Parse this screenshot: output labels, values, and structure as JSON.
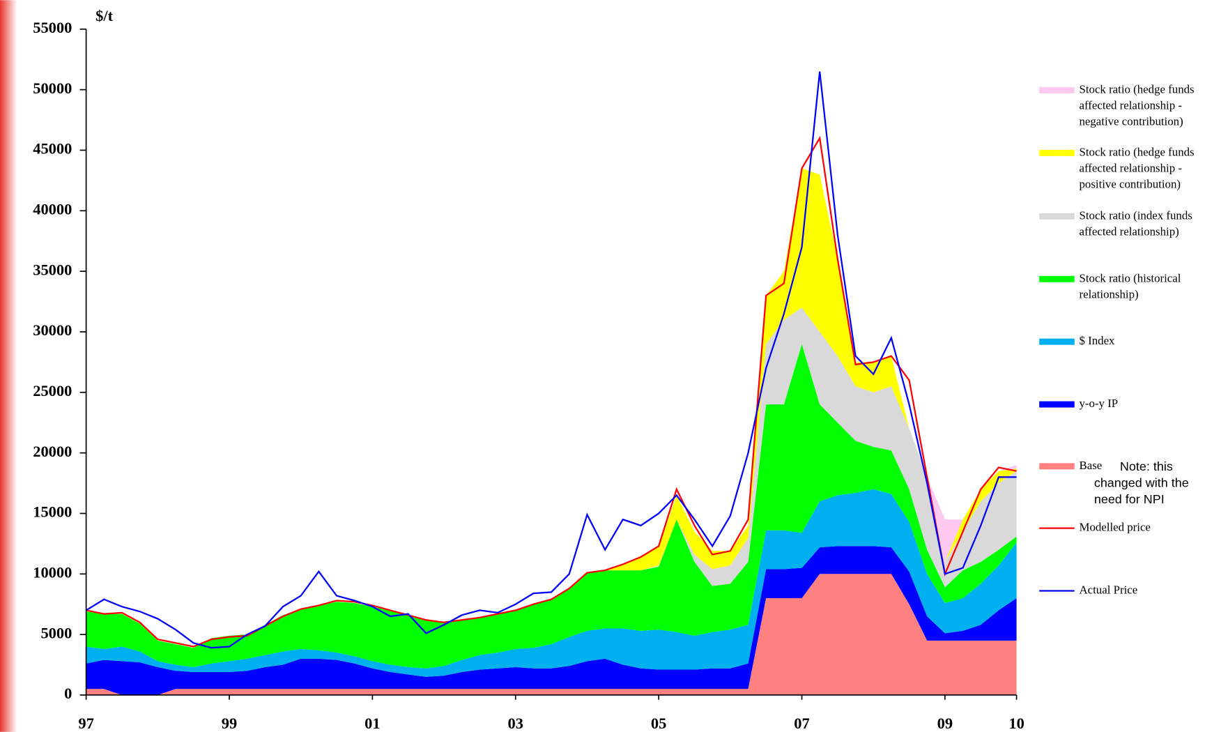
{
  "chart_data": {
    "type": "area",
    "y_label": "$/t",
    "annotation": "Note: this changed with the need for NPI",
    "x": [
      1997.0,
      1997.25,
      1997.5,
      1997.75,
      1998.0,
      1998.25,
      1998.5,
      1998.75,
      1999.0,
      1999.25,
      1999.5,
      1999.75,
      2000.0,
      2000.25,
      2000.5,
      2000.75,
      2001.0,
      2001.25,
      2001.5,
      2001.75,
      2002.0,
      2002.25,
      2002.5,
      2002.75,
      2003.0,
      2003.25,
      2003.5,
      2003.75,
      2004.0,
      2004.25,
      2004.5,
      2004.75,
      2005.0,
      2005.25,
      2005.5,
      2005.75,
      2006.0,
      2006.25,
      2006.5,
      2006.75,
      2007.0,
      2007.25,
      2007.5,
      2007.75,
      2008.0,
      2008.25,
      2008.5,
      2008.75,
      2009.0,
      2009.25,
      2009.5,
      2009.75,
      2010.0
    ],
    "xlim": [
      1997,
      2010
    ],
    "xticks": [
      {
        "value": 1997,
        "label": "97"
      },
      {
        "value": 1999,
        "label": "99"
      },
      {
        "value": 2001,
        "label": "01"
      },
      {
        "value": 2003,
        "label": "03"
      },
      {
        "value": 2005,
        "label": "05"
      },
      {
        "value": 2007,
        "label": "07"
      },
      {
        "value": 2009,
        "label": "09"
      },
      {
        "value": 2010,
        "label": "10"
      }
    ],
    "ylim": [
      0,
      55000
    ],
    "yticks": [
      0,
      5000,
      10000,
      15000,
      20000,
      25000,
      30000,
      35000,
      40000,
      45000,
      50000,
      55000
    ],
    "series": [
      {
        "name": "Base",
        "color": "#ff8080",
        "type": "area",
        "values": [
          500,
          500,
          0,
          0,
          0,
          500,
          500,
          500,
          500,
          500,
          500,
          500,
          500,
          500,
          500,
          500,
          500,
          500,
          500,
          500,
          500,
          500,
          500,
          500,
          500,
          500,
          500,
          500,
          500,
          500,
          500,
          500,
          500,
          500,
          500,
          500,
          500,
          500,
          8000,
          8000,
          8000,
          10000,
          10000,
          10000,
          10000,
          10000,
          7500,
          4500,
          4500,
          4500,
          4500,
          4500,
          4500
        ]
      },
      {
        "name": "y-o-y IP",
        "color": "#0000ff",
        "type": "area",
        "values": [
          2100,
          2400,
          2800,
          2700,
          2300,
          1500,
          1400,
          1400,
          1400,
          1500,
          1800,
          2000,
          2500,
          2500,
          2400,
          2100,
          1700,
          1400,
          1200,
          1000,
          1100,
          1400,
          1600,
          1700,
          1800,
          1700,
          1700,
          1900,
          2300,
          2500,
          2000,
          1700,
          1600,
          1600,
          1600,
          1700,
          1700,
          2100,
          2400,
          2400,
          2500,
          2200,
          2300,
          2300,
          2300,
          2200,
          2700,
          2000,
          600,
          800,
          1300,
          2500,
          3500
        ]
      },
      {
        "name": "$ Index",
        "color": "#00b0f0",
        "type": "area",
        "values": [
          1400,
          900,
          1200,
          900,
          500,
          500,
          400,
          700,
          900,
          1000,
          1000,
          1100,
          800,
          700,
          600,
          600,
          600,
          600,
          600,
          700,
          800,
          1000,
          1200,
          1300,
          1500,
          1700,
          2000,
          2400,
          2500,
          2500,
          3000,
          3100,
          3300,
          3100,
          2800,
          3000,
          3200,
          3200,
          3200,
          3200,
          2900,
          3800,
          4200,
          4400,
          4700,
          4400,
          4100,
          3500,
          2500,
          2700,
          3400,
          3700,
          4600
        ]
      },
      {
        "name": "Stock ratio (historical relationship)",
        "color": "#00ff00",
        "type": "area",
        "values": [
          2900,
          2900,
          2700,
          2300,
          1700,
          1700,
          1600,
          2100,
          2100,
          2000,
          2500,
          3000,
          3300,
          3700,
          4200,
          4400,
          4500,
          4500,
          4300,
          4000,
          3600,
          3300,
          3100,
          3200,
          3200,
          3600,
          3700,
          4000,
          4800,
          4800,
          4800,
          5000,
          5200,
          9300,
          6100,
          3800,
          3800,
          5200,
          10400,
          10400,
          15600,
          8000,
          6000,
          4300,
          3500,
          3600,
          2700,
          2000,
          1300,
          2300,
          1800,
          1300,
          500
        ]
      },
      {
        "name": "Stock ratio (index funds affected relationship)",
        "color": "#d9d9d9",
        "type": "area",
        "values": [
          0,
          0,
          0,
          0,
          0,
          0,
          0,
          0,
          0,
          0,
          0,
          0,
          0,
          0,
          0,
          0,
          0,
          0,
          0,
          0,
          0,
          0,
          0,
          0,
          0,
          0,
          0,
          0,
          0,
          0,
          0,
          0,
          100,
          0,
          600,
          1400,
          1500,
          2000,
          5000,
          7000,
          3000,
          6000,
          5500,
          4500,
          4500,
          5300,
          5000,
          6000,
          2100,
          3200,
          5000,
          5500,
          5400
        ]
      },
      {
        "name": "Stock ratio (hedge funds affected relationship - positive contribution)",
        "color": "#ffff00",
        "type": "area",
        "values": [
          0,
          0,
          0,
          0,
          0,
          0,
          0,
          0,
          0,
          0,
          0,
          0,
          0,
          0,
          0,
          0,
          0,
          0,
          0,
          0,
          0,
          0,
          0,
          0,
          0,
          0,
          0,
          0,
          0,
          0,
          500,
          1200,
          1500,
          2000,
          1900,
          1500,
          1200,
          1000,
          4000,
          4000,
          11500,
          13000,
          8000,
          2000,
          2500,
          2500,
          0,
          0,
          0,
          1000,
          1000,
          1000,
          200
        ]
      },
      {
        "name": "Stock ratio (hedge funds affected relationship - negative contribution)",
        "color": "#ffc8f0",
        "type": "area",
        "values": [
          0,
          0,
          0,
          0,
          0,
          0,
          0,
          0,
          0,
          0,
          0,
          0,
          0,
          0,
          0,
          0,
          0,
          0,
          0,
          0,
          0,
          0,
          0,
          0,
          0,
          0,
          0,
          0,
          0,
          0,
          0,
          0,
          0,
          0,
          0,
          0,
          0,
          0,
          0,
          0,
          0,
          0,
          0,
          0,
          0,
          0,
          0,
          0,
          3500,
          0,
          0,
          0,
          300
        ]
      },
      {
        "name": "Modelled price",
        "color": "#ff0000",
        "type": "line",
        "values": [
          7000,
          6700,
          6800,
          6000,
          4600,
          4300,
          4000,
          4600,
          4800,
          4900,
          5700,
          6500,
          7100,
          7400,
          7800,
          7700,
          7400,
          7000,
          6600,
          6200,
          6000,
          6200,
          6400,
          6700,
          7000,
          7500,
          7900,
          8800,
          10100,
          10300,
          10800,
          11400,
          12300,
          17000,
          14000,
          11600,
          11900,
          14500,
          33000,
          34000,
          43500,
          46000,
          36000,
          27300,
          27500,
          28000,
          26000,
          18000,
          10000,
          13500,
          17000,
          18800,
          18500
        ]
      },
      {
        "name": "Actual Price",
        "color": "#0000ff",
        "type": "line",
        "values": [
          7000,
          7900,
          7300,
          6900,
          6300,
          5400,
          4300,
          3900,
          4000,
          5000,
          5700,
          7300,
          8200,
          10200,
          8200,
          7800,
          7300,
          6500,
          6700,
          5100,
          5800,
          6600,
          7000,
          6800,
          7500,
          8400,
          8500,
          10000,
          14900,
          12000,
          14500,
          14000,
          15000,
          16500,
          14500,
          12300,
          14800,
          20000,
          27000,
          31500,
          37000,
          51500,
          38000,
          28000,
          26500,
          29500,
          24000,
          17500,
          10000,
          10500,
          14000,
          18000,
          18000
        ]
      }
    ]
  }
}
